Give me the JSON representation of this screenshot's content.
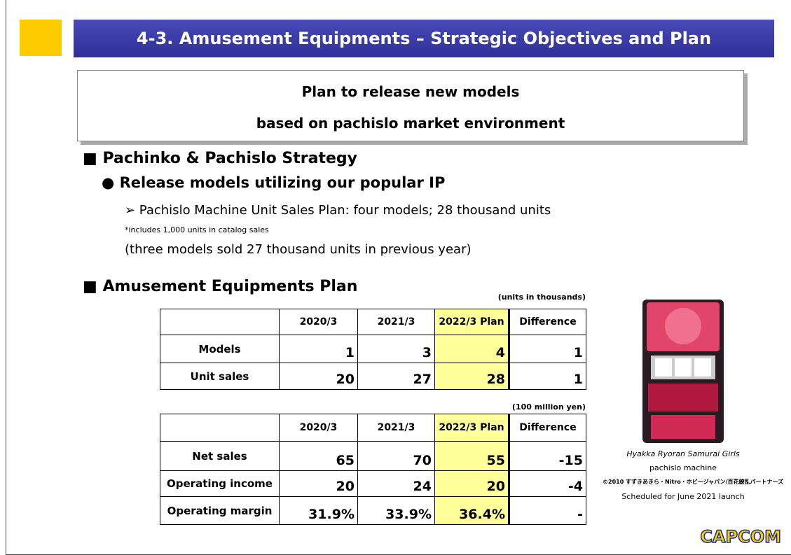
{
  "header": {
    "title": "4-3. Amusement Equipments – Strategic Objectives and Plan"
  },
  "summary": {
    "lines": [
      "Plan to release new models",
      "based on pachislo market environment"
    ]
  },
  "bullets": {
    "section1": "■ Pachinko & Pachislo Strategy",
    "point1": "● Release models utilizing our popular IP",
    "sub1": "➢ Pachislo Machine Unit Sales Plan: four models; 28 thousand units",
    "note": "*includes 1,000 units in catalog sales",
    "sub2": "(three models sold 27 thousand units in previous year)",
    "section2": "■ Amusement Equipments Plan"
  },
  "table1": {
    "unit": "(units in thousands)",
    "columns": [
      "",
      "2020/3",
      "2021/3",
      "2022/3 Plan",
      "Difference"
    ],
    "rows": [
      [
        "Models",
        "1",
        "3",
        "4",
        "1"
      ],
      [
        "Unit sales",
        "20",
        "27",
        "28",
        "1"
      ]
    ]
  },
  "table2": {
    "unit": "(100 million yen)",
    "columns": [
      "",
      "2020/3",
      "2021/3",
      "2022/3 Plan",
      "Difference"
    ],
    "rows": [
      [
        "Net sales",
        "65",
        "70",
        "55",
        "-15"
      ],
      [
        "Operating income",
        "20",
        "24",
        "20",
        "-4"
      ],
      [
        "Operating margin",
        "31.9%",
        "33.9%",
        "36.4%",
        "-"
      ]
    ]
  },
  "image": {
    "caption": [
      "Hyakka Ryoran Samurai Girls",
      "pachislo machine",
      "©2010 すずきあきら・Nitro・ホビージャパン/百花繚乱パートナーズ",
      "Scheduled for June 2021 launch"
    ]
  },
  "footer": {
    "logo": "CAPCOM"
  }
}
